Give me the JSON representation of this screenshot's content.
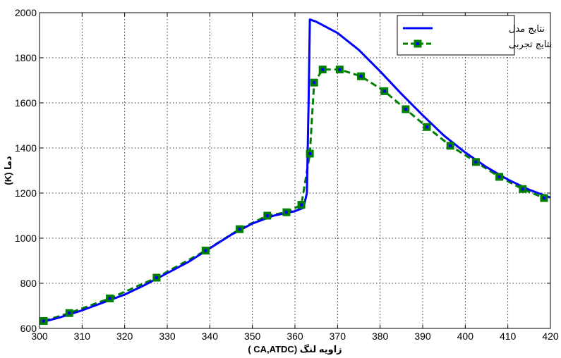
{
  "chart_data": {
    "type": "line",
    "xlabel": "زاویه لنگ (CA,ATDC )",
    "ylabel": "دما (K)",
    "xlim": [
      300,
      420
    ],
    "ylim": [
      600,
      2000
    ],
    "xticks": [
      300,
      310,
      320,
      330,
      340,
      350,
      360,
      370,
      380,
      390,
      400,
      410,
      420
    ],
    "yticks": [
      600,
      800,
      1000,
      1200,
      1400,
      1600,
      1800,
      2000
    ],
    "grid": true,
    "legend_position": "top-right",
    "series": [
      {
        "name": "نتایج مدل",
        "color": "#0000ff",
        "style": "solid",
        "markers": false,
        "points": [
          [
            300,
            625
          ],
          [
            305,
            650
          ],
          [
            310,
            680
          ],
          [
            315,
            715
          ],
          [
            320,
            750
          ],
          [
            325,
            795
          ],
          [
            330,
            845
          ],
          [
            335,
            895
          ],
          [
            340,
            955
          ],
          [
            345,
            1015
          ],
          [
            350,
            1065
          ],
          [
            355,
            1100
          ],
          [
            360,
            1120
          ],
          [
            362,
            1135
          ],
          [
            362.8,
            1200
          ],
          [
            363.2,
            1600
          ],
          [
            363.5,
            1970
          ],
          [
            365,
            1960
          ],
          [
            370,
            1910
          ],
          [
            375,
            1835
          ],
          [
            380,
            1740
          ],
          [
            385,
            1640
          ],
          [
            390,
            1545
          ],
          [
            395,
            1455
          ],
          [
            400,
            1380
          ],
          [
            405,
            1315
          ],
          [
            410,
            1260
          ],
          [
            415,
            1215
          ],
          [
            420,
            1180
          ]
        ]
      },
      {
        "name": "نتایج تجربی",
        "color": "#008000",
        "marker_color": "#008000",
        "marker_center_color": "#0000ff",
        "style": "dashed",
        "markers": true,
        "points": [
          [
            301,
            633
          ],
          [
            307,
            668
          ],
          [
            316.5,
            733
          ],
          [
            327.5,
            825
          ],
          [
            339,
            945
          ],
          [
            347,
            1040
          ],
          [
            353.5,
            1100
          ],
          [
            358,
            1115
          ],
          [
            361.5,
            1148
          ],
          [
            363.5,
            1375
          ],
          [
            364.5,
            1690
          ],
          [
            366.5,
            1748
          ],
          [
            370.5,
            1748
          ],
          [
            375.5,
            1718
          ],
          [
            381,
            1652
          ],
          [
            386,
            1572
          ],
          [
            391,
            1493
          ],
          [
            396.5,
            1410
          ],
          [
            402.5,
            1338
          ],
          [
            408,
            1272
          ],
          [
            413.5,
            1218
          ],
          [
            418.5,
            1178
          ]
        ]
      }
    ]
  }
}
